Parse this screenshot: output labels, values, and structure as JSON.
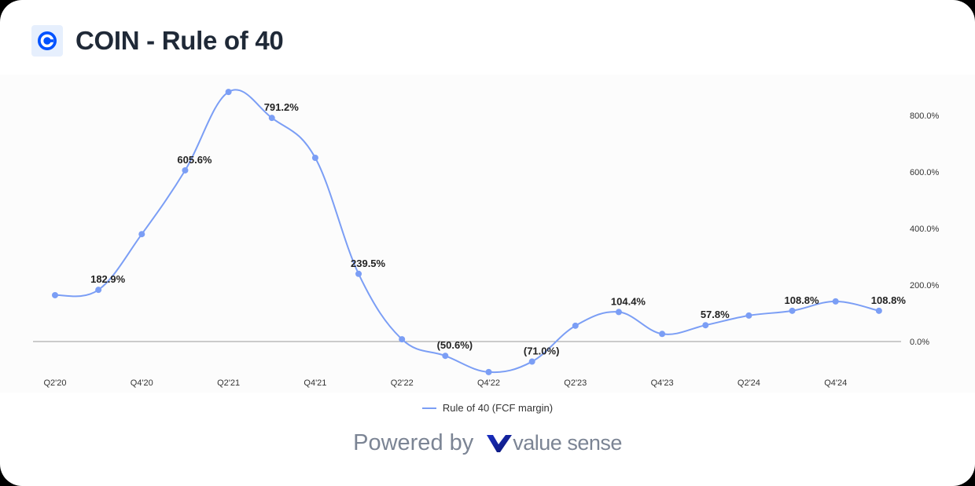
{
  "header": {
    "title": "COIN - Rule of 40",
    "logo_icon": "coinbase-logo-icon"
  },
  "legend": {
    "label": "Rule of 40 (FCF margin)",
    "color": "#7b9ef5"
  },
  "footer": {
    "powered_by": "Powered by",
    "brand": "value sense"
  },
  "chart_data": {
    "type": "line",
    "title": "COIN - Rule of 40",
    "xlabel": "",
    "ylabel": "",
    "ylim": [
      -150,
      900
    ],
    "y_ticks": [
      "0.0%",
      "200.0%",
      "400.0%",
      "600.0%",
      "800.0%"
    ],
    "y_axis_position": "right",
    "grid": false,
    "legend_position": "bottom",
    "x": [
      "Q2'20",
      "Q3'20",
      "Q4'20",
      "Q1'21",
      "Q2'21",
      "Q3'21",
      "Q4'21",
      "Q1'22",
      "Q2'22",
      "Q3'22",
      "Q4'22",
      "Q1'23",
      "Q2'23",
      "Q3'23",
      "Q4'23",
      "Q1'24",
      "Q2'24",
      "Q3'24",
      "Q4'24",
      "Q1'25"
    ],
    "x_tick_labels": [
      "Q2'20",
      "Q4'20",
      "Q2'21",
      "Q4'21",
      "Q2'22",
      "Q4'22",
      "Q2'23",
      "Q4'23",
      "Q2'24",
      "Q4'24"
    ],
    "series": [
      {
        "name": "Rule of 40 (FCF margin)",
        "color": "#7b9ef5",
        "values": [
          164,
          182.9,
          380,
          605.6,
          883,
          791.2,
          650,
          239.5,
          8,
          -50.6,
          -108,
          -71.0,
          56,
          104.4,
          27,
          57.8,
          92,
          108.8,
          142,
          108.8
        ],
        "data_labels": [
          null,
          "182.9%",
          null,
          "605.6%",
          null,
          "791.2%",
          null,
          "239.5%",
          null,
          "(50.6%)",
          null,
          "(71.0%)",
          null,
          "104.4%",
          null,
          "57.8%",
          null,
          "108.8%",
          null,
          "108.8%"
        ]
      }
    ]
  }
}
